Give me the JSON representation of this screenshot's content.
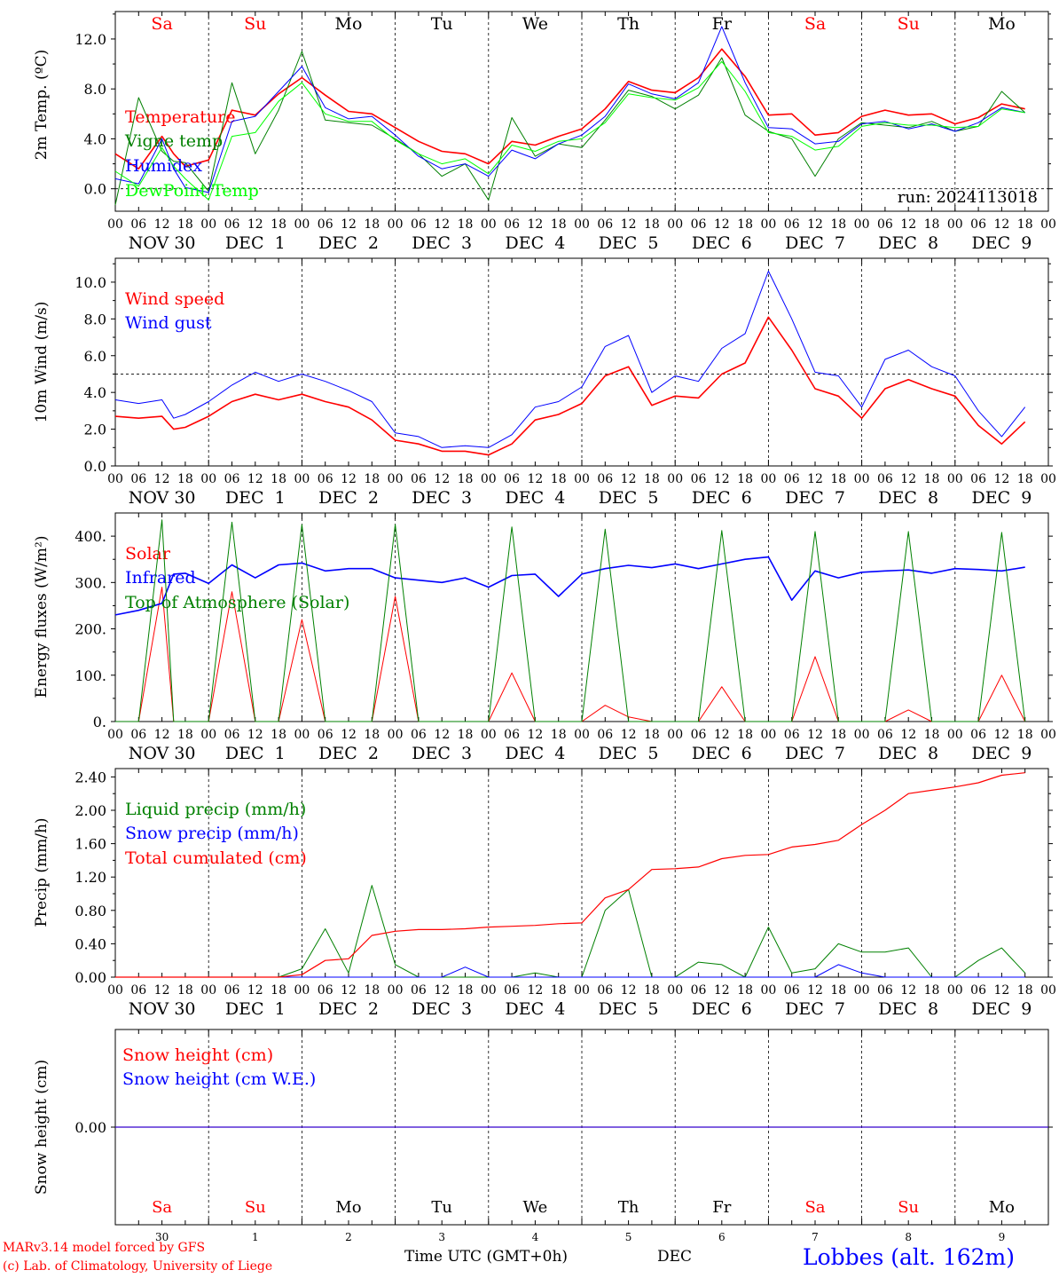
{
  "colors": {
    "red": "#ff0000",
    "dark_green": "#008000",
    "blue": "#0000ff",
    "light_green": "#00ff00",
    "black": "#000000"
  },
  "footer": {
    "model_line": "MARv3.14 model forced by GFS",
    "credit_line": "(c) Lab. of Climatology, University of Liege",
    "time_label": "Time UTC (GMT+0h)",
    "month_label": "DEC",
    "station": "Lobbes (alt. 162m)"
  },
  "shared_axis": {
    "hour_ticks": [
      "00",
      "06",
      "12",
      "18"
    ],
    "final_tick": "00",
    "date_labels": [
      "NOV 30",
      "DEC  1",
      "DEC  2",
      "DEC  3",
      "DEC  4",
      "DEC  5",
      "DEC  6",
      "DEC  7",
      "DEC  8",
      "DEC  9"
    ],
    "day_names": [
      "Sa",
      "Su",
      "Mo",
      "Tu",
      "We",
      "Th",
      "Fr",
      "Sa",
      "Su",
      "Mo"
    ],
    "day_name_colors": [
      "#ff0000",
      "#ff0000",
      "#000000",
      "#000000",
      "#000000",
      "#000000",
      "#000000",
      "#ff0000",
      "#ff0000",
      "#000000"
    ],
    "day_numbers": [
      "30",
      "1",
      "2",
      "3",
      "4",
      "5",
      "6",
      "7",
      "8",
      "9"
    ],
    "x_unit": "hours from 2024-11-30 00 UTC"
  },
  "chart_data": [
    {
      "type": "line",
      "ylabel": "2m Temp. (ºC)",
      "ylim": [
        -1.8,
        14.2
      ],
      "yticks": [
        0,
        4,
        8,
        12
      ],
      "ytick_labels": [
        "0.0",
        "4.0",
        "8.0",
        "12.0"
      ],
      "ref_line": 0,
      "run_label": "run: 2024113018",
      "x": [
        0,
        6,
        12,
        15,
        18,
        24,
        30,
        36,
        42,
        48,
        54,
        60,
        66,
        72,
        78,
        84,
        90,
        96,
        102,
        108,
        114,
        120,
        126,
        132,
        138,
        144,
        150,
        156,
        162,
        168,
        174,
        180,
        186,
        192,
        198,
        204,
        210,
        216,
        222,
        228,
        234
      ],
      "series": [
        {
          "name": "Temperature",
          "color": "#ff0000",
          "width": 1.6,
          "values": [
            2.8,
            1.6,
            4.2,
            2.8,
            1.8,
            2.3,
            6.3,
            5.9,
            7.6,
            8.9,
            7.5,
            6.2,
            6.0,
            4.9,
            3.8,
            3.0,
            2.8,
            2.0,
            3.8,
            3.5,
            4.2,
            4.8,
            6.4,
            8.6,
            7.9,
            7.7,
            8.9,
            11.2,
            9.0,
            5.9,
            6.0,
            4.3,
            4.5,
            5.8,
            6.3,
            5.9,
            6.0,
            5.2,
            5.7,
            6.8,
            6.4
          ]
        },
        {
          "name": "Vigne temp",
          "color": "#008000",
          "width": 1.0,
          "values": [
            -1.3,
            7.3,
            3.0,
            2.2,
            2.1,
            -0.2,
            8.5,
            2.8,
            6.3,
            11.0,
            5.5,
            5.3,
            5.1,
            4.0,
            2.8,
            1.0,
            2.0,
            -0.9,
            5.7,
            2.6,
            3.6,
            3.3,
            5.5,
            7.9,
            7.4,
            6.4,
            7.5,
            10.5,
            5.9,
            4.6,
            4.0,
            1.0,
            4.0,
            5.3,
            5.1,
            4.9,
            5.4,
            4.6,
            5.0,
            7.8,
            6.1
          ]
        },
        {
          "name": "Humidex",
          "color": "#0000ff",
          "width": 1.0,
          "values": [
            0.8,
            0.4,
            4.0,
            1.6,
            0.1,
            -0.3,
            5.4,
            5.8,
            7.8,
            9.8,
            6.5,
            5.6,
            5.8,
            4.3,
            2.6,
            1.6,
            2.0,
            1.0,
            3.1,
            2.4,
            3.6,
            4.3,
            5.8,
            8.4,
            7.6,
            7.2,
            8.5,
            13.0,
            8.5,
            4.9,
            4.8,
            3.6,
            3.8,
            5.2,
            5.4,
            4.8,
            5.2,
            4.6,
            5.3,
            6.5,
            6.1
          ]
        },
        {
          "name": "DewPoint Temp",
          "color": "#00ff00",
          "width": 1.0,
          "values": [
            1.4,
            0.2,
            3.3,
            1.8,
            0.8,
            -0.9,
            4.2,
            4.5,
            7.0,
            8.5,
            6.0,
            5.4,
            5.4,
            3.9,
            2.8,
            2.0,
            2.4,
            1.2,
            3.5,
            3.0,
            3.8,
            4.0,
            5.3,
            7.6,
            7.3,
            7.1,
            8.1,
            10.2,
            7.8,
            4.5,
            4.2,
            3.1,
            3.4,
            5.0,
            5.3,
            5.1,
            5.1,
            4.9,
            5.0,
            6.4,
            6.1
          ]
        }
      ]
    },
    {
      "type": "line",
      "ylabel": "10m Wind (m/s)",
      "ylim": [
        0,
        11.3
      ],
      "yticks": [
        0,
        2,
        4,
        6,
        8,
        10
      ],
      "ytick_labels": [
        "0.0",
        "2.0",
        "4.0",
        "6.0",
        "8.0",
        "10.0"
      ],
      "ref_line": 5,
      "x": [
        0,
        6,
        12,
        15,
        18,
        24,
        30,
        36,
        42,
        48,
        54,
        60,
        66,
        72,
        78,
        84,
        90,
        96,
        102,
        108,
        114,
        120,
        126,
        132,
        138,
        144,
        150,
        156,
        162,
        168,
        174,
        180,
        186,
        192,
        198,
        204,
        210,
        216,
        222,
        228,
        234
      ],
      "series": [
        {
          "name": "Wind speed",
          "color": "#ff0000",
          "width": 1.6,
          "values": [
            2.7,
            2.6,
            2.7,
            2.0,
            2.1,
            2.7,
            3.5,
            3.9,
            3.6,
            3.9,
            3.5,
            3.2,
            2.5,
            1.4,
            1.2,
            0.8,
            0.8,
            0.6,
            1.2,
            2.5,
            2.8,
            3.4,
            4.9,
            5.4,
            3.3,
            3.8,
            3.7,
            5.0,
            5.6,
            8.1,
            6.3,
            4.2,
            3.8,
            2.6,
            4.2,
            4.7,
            4.2,
            3.8,
            2.2,
            1.2,
            2.4
          ]
        },
        {
          "name": "Wind gust",
          "color": "#0000ff",
          "width": 1.0,
          "values": [
            3.6,
            3.4,
            3.6,
            2.6,
            2.8,
            3.5,
            4.4,
            5.1,
            4.6,
            5.0,
            4.6,
            4.1,
            3.5,
            1.8,
            1.6,
            1.0,
            1.1,
            1.0,
            1.7,
            3.2,
            3.5,
            4.3,
            6.5,
            7.1,
            4.0,
            4.9,
            4.6,
            6.4,
            7.2,
            10.6,
            8.0,
            5.1,
            4.9,
            3.2,
            5.8,
            6.3,
            5.4,
            4.9,
            3.0,
            1.6,
            3.2
          ]
        }
      ]
    },
    {
      "type": "line",
      "ylabel": "Energy fluxes (W/m²)",
      "ylim": [
        0,
        450
      ],
      "yticks": [
        0,
        100,
        200,
        300,
        400
      ],
      "ytick_labels": [
        "0.",
        "100.",
        "200.",
        "300.",
        "400."
      ],
      "x": [
        0,
        6,
        12,
        15,
        18,
        24,
        30,
        36,
        42,
        48,
        54,
        60,
        66,
        72,
        78,
        84,
        90,
        96,
        102,
        108,
        114,
        120,
        126,
        132,
        138,
        144,
        150,
        156,
        162,
        168,
        174,
        180,
        186,
        192,
        198,
        204,
        210,
        216,
        222,
        228,
        234
      ],
      "series": [
        {
          "name": "Solar",
          "color": "#ff0000",
          "width": 1.0,
          "values": [
            0,
            0,
            290,
            0,
            0,
            0,
            280,
            0,
            0,
            220,
            0,
            0,
            0,
            270,
            0,
            0,
            0,
            0,
            105,
            0,
            0,
            0,
            35,
            10,
            0,
            0,
            0,
            75,
            0,
            0,
            0,
            140,
            0,
            0,
            0,
            25,
            0,
            0,
            0,
            100,
            0
          ]
        },
        {
          "name": "Infrared",
          "color": "#0000ff",
          "width": 1.6,
          "values": [
            230,
            240,
            255,
            318,
            320,
            298,
            338,
            310,
            338,
            342,
            325,
            330,
            330,
            310,
            305,
            300,
            310,
            290,
            315,
            318,
            270,
            318,
            330,
            337,
            332,
            340,
            330,
            340,
            350,
            355,
            262,
            325,
            310,
            322,
            325,
            327,
            320,
            330,
            328,
            325,
            333
          ]
        },
        {
          "name": "Top of Atmosphere (Solar)",
          "color": "#008000",
          "width": 1.0,
          "values": [
            0,
            0,
            435,
            0,
            0,
            0,
            430,
            0,
            0,
            425,
            0,
            0,
            0,
            425,
            0,
            0,
            0,
            0,
            420,
            0,
            0,
            0,
            415,
            0,
            0,
            0,
            0,
            412,
            0,
            0,
            0,
            410,
            0,
            0,
            0,
            410,
            0,
            0,
            0,
            408,
            0
          ]
        }
      ]
    },
    {
      "type": "line",
      "ylabel": "Precip (mm/h)",
      "ylim": [
        0,
        2.5
      ],
      "yticks": [
        0,
        0.4,
        0.8,
        1.2,
        1.6,
        2.0,
        2.4
      ],
      "ytick_labels": [
        "0.00",
        "0.40",
        "0.80",
        "1.20",
        "1.60",
        "2.00",
        "2.40"
      ],
      "x": [
        0,
        6,
        12,
        15,
        18,
        24,
        30,
        36,
        42,
        48,
        54,
        60,
        66,
        72,
        78,
        84,
        90,
        96,
        102,
        108,
        114,
        120,
        126,
        132,
        138,
        144,
        150,
        156,
        162,
        168,
        174,
        180,
        186,
        192,
        198,
        204,
        210,
        216,
        222,
        228,
        234
      ],
      "series": [
        {
          "name": "Liquid precip (mm/h)",
          "color": "#008000",
          "width": 1.0,
          "values": [
            0,
            0,
            0,
            0,
            0,
            0,
            0,
            0,
            0,
            0.1,
            0.58,
            0.05,
            1.1,
            0.15,
            0,
            0,
            0,
            0,
            0,
            0.05,
            0,
            0,
            0.8,
            1.05,
            0,
            0,
            0.18,
            0.15,
            0,
            0.6,
            0.05,
            0.1,
            0.4,
            0.3,
            0.3,
            0.35,
            0,
            0,
            0.2,
            0.35,
            0.05
          ]
        },
        {
          "name": "Snow precip (mm/h)",
          "color": "#0000ff",
          "width": 1.0,
          "values": [
            0,
            0,
            0,
            0,
            0,
            0,
            0,
            0,
            0,
            0,
            0,
            0,
            0,
            0,
            0,
            0,
            0.12,
            0,
            0,
            0,
            0,
            0,
            0,
            0,
            0,
            0,
            0,
            0,
            0,
            0,
            0,
            0,
            0.15,
            0.05,
            0,
            0,
            0,
            0,
            0,
            0,
            0
          ]
        },
        {
          "name": "Total cumulated (cm)",
          "color": "#ff0000",
          "width": 1.2,
          "values": [
            0,
            0,
            0,
            0,
            0,
            0,
            0,
            0,
            0,
            0.03,
            0.2,
            0.22,
            0.5,
            0.55,
            0.57,
            0.57,
            0.58,
            0.6,
            0.61,
            0.62,
            0.64,
            0.65,
            0.95,
            1.05,
            1.29,
            1.3,
            1.32,
            1.42,
            1.46,
            1.47,
            1.56,
            1.59,
            1.64,
            1.83,
            2.0,
            2.2,
            2.24,
            2.28,
            2.33,
            2.42,
            2.45
          ]
        }
      ]
    },
    {
      "type": "line",
      "ylabel": "Snow height (cm)",
      "yticks": [
        0
      ],
      "ytick_labels": [
        "0.00"
      ],
      "x": [
        0,
        240
      ],
      "series": [
        {
          "name": "Snow height (cm)",
          "color": "#ff0000",
          "width": 1.2,
          "values": [
            0,
            0
          ]
        },
        {
          "name": "Snow height (cm W.E.)",
          "color": "#0000ff",
          "width": 1.0,
          "values": [
            0,
            0
          ]
        }
      ]
    }
  ]
}
